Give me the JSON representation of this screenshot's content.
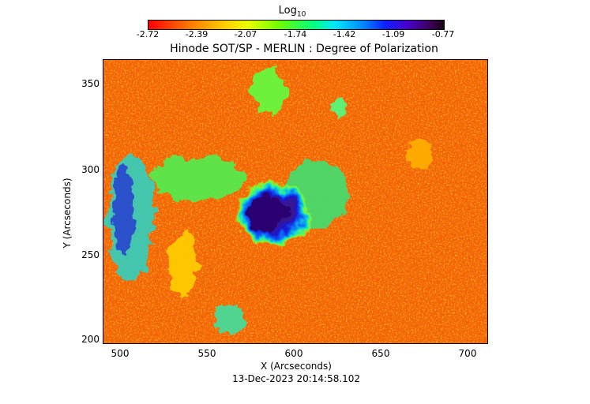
{
  "colorbar": {
    "title": "Log",
    "title_subscript": "10",
    "ticks": [
      "-2.72",
      "-2.39",
      "-2.07",
      "-1.74",
      "-1.42",
      "-1.09",
      "-0.77"
    ]
  },
  "plot": {
    "title": "Hinode SOT/SP - MERLIN : Degree of Polarization",
    "xlabel": "X (Arcseconds)",
    "ylabel": "Y (Arcseconds)",
    "x_ticks": [
      "500",
      "550",
      "600",
      "650",
      "700"
    ],
    "y_ticks": [
      "350",
      "300",
      "250",
      "200"
    ],
    "timestamp": "13-Dec-2023 20:14:58.102"
  },
  "colors": {
    "background_map": "#f26a00",
    "sunspot_umbra": "#2a0070",
    "sunspot_penumbra": "#1818d0"
  }
}
